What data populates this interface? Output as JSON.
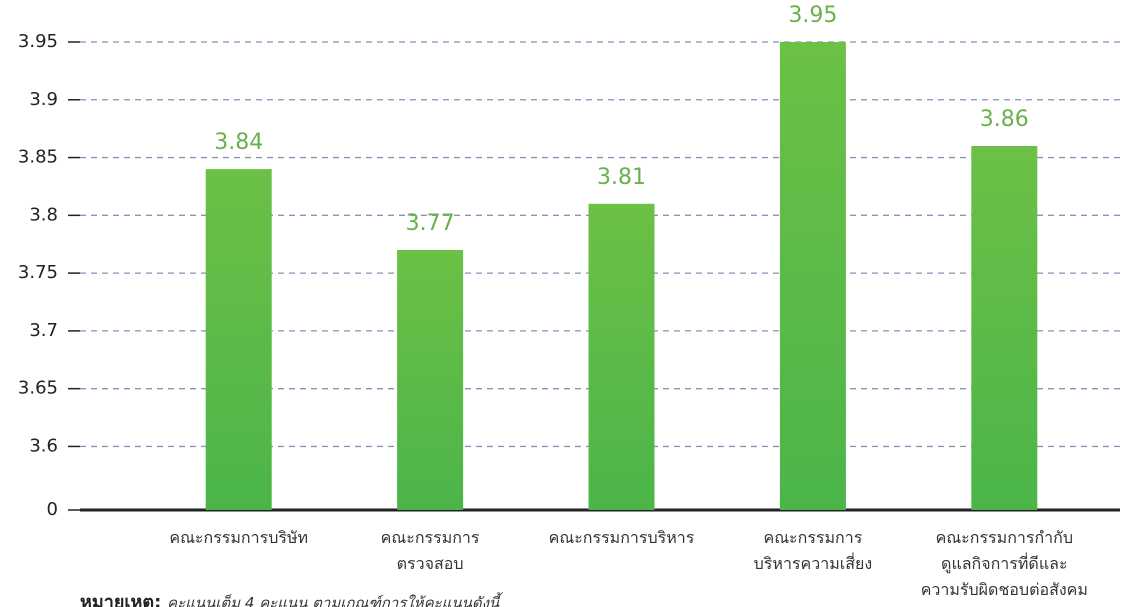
{
  "chart_data": {
    "type": "bar",
    "categories": [
      [
        "คณะกรรมการบริษัท"
      ],
      [
        "คณะกรรมการ",
        "ตรวจสอบ"
      ],
      [
        "คณะกรรมการบริหาร"
      ],
      [
        "คณะกรรมการ",
        "บริหารความเสี่ยง"
      ],
      [
        "คณะกรรมการกำกับ",
        "ดูแลกิจการที่ดีและ",
        "ความรับผิดชอบต่อสังคม"
      ]
    ],
    "values": [
      3.84,
      3.77,
      3.81,
      3.95,
      3.86
    ],
    "color": "#5cb946",
    "ylim": [
      3.545,
      3.95
    ],
    "yticks": [
      0,
      3.6,
      3.65,
      3.7,
      3.75,
      3.8,
      3.85,
      3.9,
      3.95
    ],
    "axis_break": true,
    "grid": true,
    "note": {
      "label": "หมายเหตุ:",
      "text": "คะแนนเต็ม 4 คะแนน ตามเกณฑ์การให้คะแนนดังนี้"
    }
  }
}
